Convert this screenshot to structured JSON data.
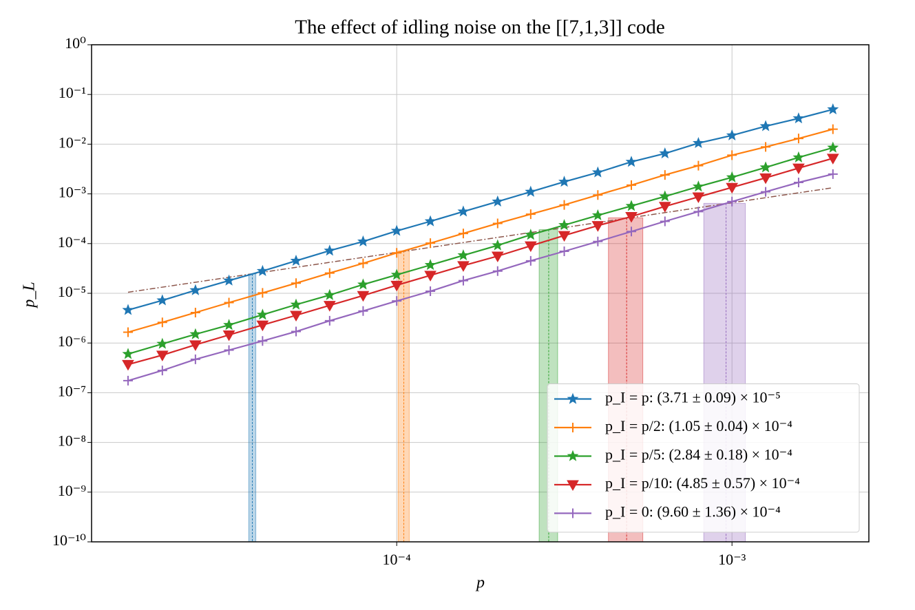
{
  "chart_data": {
    "type": "line",
    "title": "The effect of idling noise on the [[7,1,3]] code",
    "x_label": "p",
    "y_label": "p_L",
    "log_x": true,
    "log_y": true,
    "grid": true,
    "legend_loc": "lower right",
    "xlim": [
      1.23e-05,
      0.00256
    ],
    "ylim": [
      1e-10,
      1
    ],
    "xticks": [
      {
        "value": 0.0001,
        "label": "10⁻⁴"
      },
      {
        "value": 0.001,
        "label": "10⁻³"
      }
    ],
    "yticks": [
      {
        "value": 1e-10,
        "label": "10⁻¹⁰"
      },
      {
        "value": 1e-09,
        "label": "10⁻⁹"
      },
      {
        "value": 1e-08,
        "label": "10⁻⁸"
      },
      {
        "value": 1e-07,
        "label": "10⁻⁷"
      },
      {
        "value": 1e-06,
        "label": "10⁻⁶"
      },
      {
        "value": 1e-05,
        "label": "10⁻⁵"
      },
      {
        "value": 0.0001,
        "label": "10⁻⁴"
      },
      {
        "value": 0.001,
        "label": "10⁻³"
      },
      {
        "value": 0.01,
        "label": "10⁻²"
      },
      {
        "value": 0.1,
        "label": "10⁻¹"
      },
      {
        "value": 1,
        "label": "10⁰"
      }
    ],
    "x": [
      1.58e-05,
      2e-05,
      2.51e-05,
      3.16e-05,
      3.98e-05,
      5.01e-05,
      6.31e-05,
      7.94e-05,
      0.0001,
      0.000126,
      0.000158,
      0.0002,
      0.000251,
      0.000316,
      0.000398,
      0.000501,
      0.000631,
      0.000794,
      0.001,
      0.00126,
      0.00158,
      0.002
    ],
    "series": [
      {
        "name": "p_I = p:  (3.71 ± 0.09) × 10⁻⁵",
        "color": "#1f77b4",
        "marker": "star",
        "threshold": 3.71e-05,
        "threshold_err": 9e-07,
        "values": [
          4.6e-06,
          7.2e-06,
          1.15e-05,
          1.8e-05,
          2.8e-05,
          4.5e-05,
          7.2e-05,
          0.00011,
          0.00018,
          0.00028,
          0.00044,
          0.0007,
          0.0011,
          0.00175,
          0.0027,
          0.0044,
          0.0065,
          0.0105,
          0.015,
          0.023,
          0.033,
          0.05
        ]
      },
      {
        "name": "p_I = p/2:  (1.05 ± 0.04) × 10⁻⁴",
        "color": "#ff7f0e",
        "marker": "plus",
        "threshold": 0.000105,
        "threshold_err": 4e-06,
        "values": [
          1.65e-06,
          2.6e-06,
          4.1e-06,
          6.5e-06,
          1.02e-05,
          1.6e-05,
          2.55e-05,
          4e-05,
          6.5e-05,
          0.000102,
          0.00016,
          0.000255,
          0.00039,
          0.0006,
          0.00095,
          0.0015,
          0.0024,
          0.0037,
          0.006,
          0.0088,
          0.013,
          0.02
        ]
      },
      {
        "name": "p_I = p/5:  (2.84 ± 0.18) × 10⁻⁴",
        "color": "#2ca02c",
        "marker": "star",
        "threshold": 0.000284,
        "threshold_err": 1.8e-05,
        "values": [
          6e-07,
          9.6e-07,
          1.5e-06,
          2.3e-06,
          3.7e-06,
          5.9e-06,
          9.2e-06,
          1.5e-05,
          2.35e-05,
          3.7e-05,
          5.8e-05,
          9.2e-05,
          0.00015,
          0.000235,
          0.00037,
          0.00057,
          0.00089,
          0.0014,
          0.00215,
          0.0034,
          0.0054,
          0.0085
        ]
      },
      {
        "name": "p_I = p/10:  (4.85 ± 0.57) × 10⁻⁴",
        "color": "#d62728",
        "marker": "tri_down",
        "threshold": 0.000485,
        "threshold_err": 5.7e-05,
        "values": [
          3.7e-07,
          5.7e-07,
          9.2e-07,
          1.45e-06,
          2.3e-06,
          3.6e-06,
          5.7e-06,
          9e-06,
          1.45e-05,
          2.3e-05,
          3.6e-05,
          5.6e-05,
          9e-05,
          0.000145,
          0.00023,
          0.00035,
          0.00056,
          0.00087,
          0.00135,
          0.0021,
          0.0033,
          0.0052
        ]
      },
      {
        "name": "p_I = 0:  (9.60 ± 1.36) × 10⁻⁴",
        "color": "#9467bd",
        "marker": "plus",
        "threshold": 0.00096,
        "threshold_err": 0.000136,
        "values": [
          1.75e-07,
          2.8e-07,
          4.7e-07,
          7.2e-07,
          1.1e-06,
          1.7e-06,
          2.8e-06,
          4.4e-06,
          7e-06,
          1.1e-05,
          1.8e-05,
          2.8e-05,
          4.5e-05,
          7e-05,
          0.00011,
          0.000175,
          0.00028,
          0.00044,
          0.0007,
          0.0011,
          0.0017,
          0.0025
        ]
      }
    ],
    "reference_line": {
      "color": "#8c564b",
      "x": [
        1.58e-05,
        0.002
      ],
      "values": [
        1.05e-05,
        0.00133
      ]
    }
  }
}
